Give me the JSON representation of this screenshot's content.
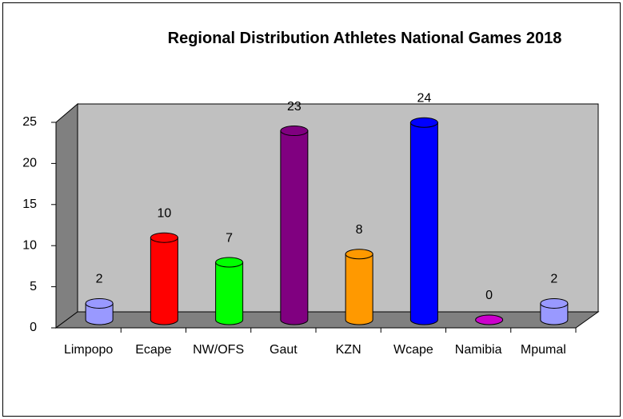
{
  "chart_data": {
    "type": "bar3d",
    "title": "Regional Distribution Athletes National Games 2018",
    "categories": [
      "Limpopo",
      "Ecape",
      "NW/OFS",
      "Gaut",
      "KZN",
      "Wcape",
      "Namibia",
      "Mpumal"
    ],
    "values": [
      2,
      10,
      7,
      23,
      8,
      24,
      0,
      2
    ],
    "colors": [
      "#9999ff",
      "#ff0000",
      "#00ff00",
      "#800080",
      "#ff9900",
      "#0000ff",
      "#cc00cc",
      "#9999ff"
    ],
    "ylim": [
      0,
      25
    ],
    "yticks": [
      0,
      5,
      10,
      15,
      20,
      25
    ],
    "grid": false
  }
}
